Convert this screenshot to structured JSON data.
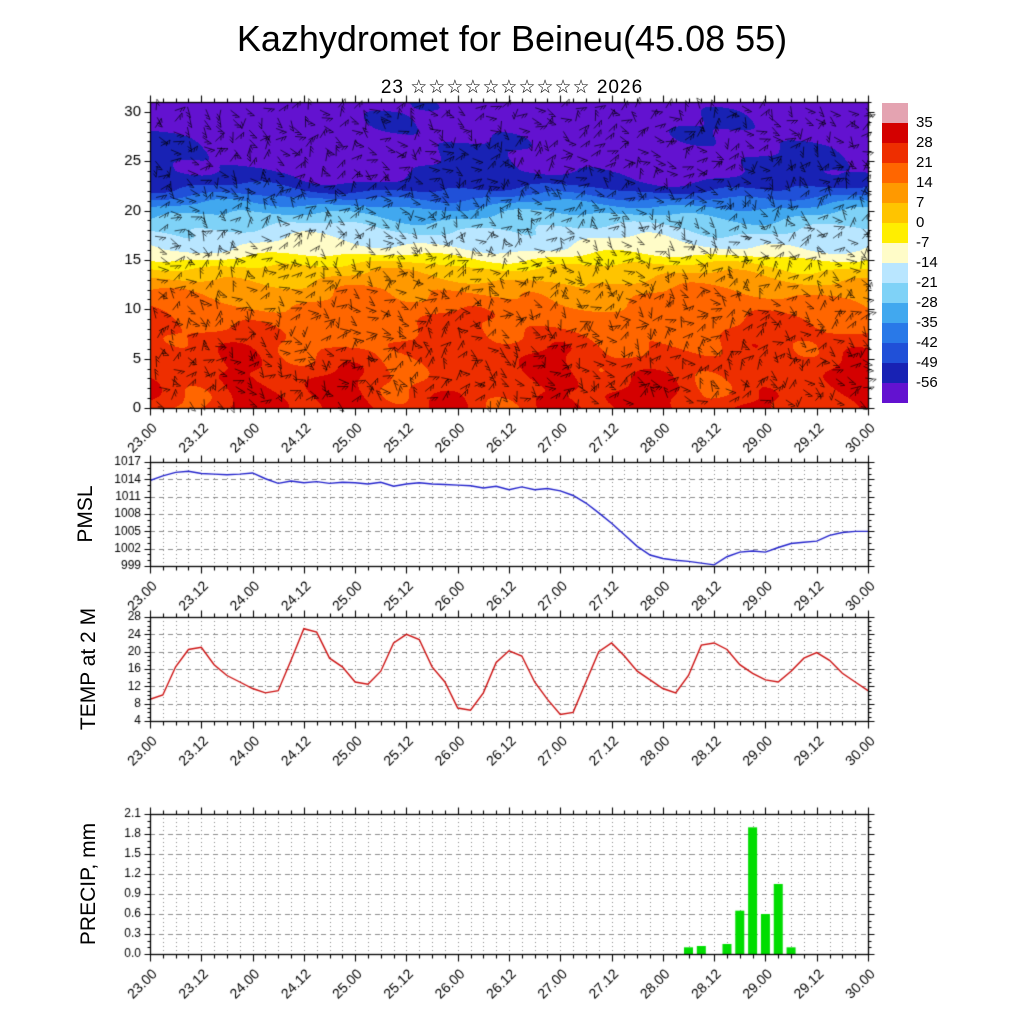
{
  "title": "Kazhydromet for Beineu(45.08 55)",
  "subtitle": "23 ☆☆☆☆☆☆☆☆☆☆ 2026",
  "axis": {
    "x_min": 23,
    "x_max": 30,
    "x_major": 0.5,
    "x_minor": 0.125,
    "x_tick_labels": [
      "23.00",
      "23.12",
      "24.00",
      "24.12",
      "25.00",
      "25.12",
      "26.00",
      "26.12",
      "27.00",
      "27.12",
      "28.00",
      "28.12",
      "29.00",
      "29.12",
      "30.00"
    ]
  },
  "chart_data": [
    {
      "id": "cross_section",
      "type": "heatmap",
      "title": "Vertical cross-section of temperature with wind barbs",
      "ylim": [
        0,
        31
      ],
      "yticks": [
        0,
        5,
        10,
        15,
        20,
        25,
        30
      ],
      "overlay": "wind-barbs",
      "colorbar": {
        "labels": [
          35,
          28,
          21,
          14,
          7,
          0,
          -7,
          -14,
          -21,
          -28,
          -35,
          -42,
          -49,
          -56
        ],
        "colors": [
          "#e4a3b1",
          "#d40000",
          "#ee2e00",
          "#ff6600",
          "#ff9900",
          "#ffc400",
          "#ffee00",
          "#fffcc8",
          "#b9e6ff",
          "#7fd2f7",
          "#41a8ef",
          "#2979e8",
          "#2050d8",
          "#1822b4",
          "#6312d0"
        ]
      },
      "profile": [
        [
          0,
          27
        ],
        [
          3,
          26
        ],
        [
          6,
          23
        ],
        [
          9,
          19
        ],
        [
          12,
          12
        ],
        [
          14,
          3
        ],
        [
          15,
          -4
        ],
        [
          16,
          -12
        ],
        [
          17,
          -16
        ],
        [
          18,
          -20
        ],
        [
          19,
          -25
        ],
        [
          20,
          -31
        ],
        [
          21,
          -39
        ],
        [
          22,
          -48
        ],
        [
          23,
          -54
        ],
        [
          24,
          -57
        ],
        [
          31,
          -60
        ]
      ]
    },
    {
      "id": "pmsl",
      "type": "line",
      "ylabel": "PMSL",
      "color": "#2222cc",
      "ylim": [
        999,
        1017
      ],
      "yticks": [
        999,
        1002,
        1005,
        1008,
        1011,
        1014,
        1017
      ],
      "x_start": 23,
      "x_step": 0.125,
      "values": [
        1013.8,
        1014.6,
        1015.2,
        1015.4,
        1015.0,
        1014.9,
        1014.8,
        1014.9,
        1015.1,
        1014.1,
        1013.3,
        1013.7,
        1013.4,
        1013.6,
        1013.3,
        1013.5,
        1013.4,
        1013.2,
        1013.5,
        1012.8,
        1013.2,
        1013.4,
        1013.2,
        1013.1,
        1013.0,
        1012.9,
        1012.5,
        1012.8,
        1012.2,
        1012.7,
        1012.2,
        1012.4,
        1012.0,
        1011.2,
        1009.9,
        1008.2,
        1006.4,
        1004.4,
        1002.4,
        1000.9,
        1000.3,
        1000.0,
        999.8,
        999.5,
        999.2,
        1000.6,
        1001.4,
        1001.6,
        1001.4,
        1002.2,
        1002.9,
        1003.1,
        1003.3,
        1004.3,
        1004.8,
        1005.0,
        1005.0
      ]
    },
    {
      "id": "temp2m",
      "type": "line",
      "ylabel": "TEMP at 2 M",
      "color": "#cc1111",
      "ylim": [
        4,
        28
      ],
      "yticks": [
        4,
        8,
        12,
        16,
        20,
        24,
        28
      ],
      "x_start": 23,
      "x_step": 0.125,
      "values": [
        9,
        10,
        16.5,
        20.5,
        21,
        17,
        14.5,
        13,
        11.5,
        10.5,
        11,
        18,
        25.3,
        24.5,
        18.5,
        16.5,
        13,
        12.5,
        15.5,
        22,
        24,
        22.8,
        16.5,
        13,
        7,
        6.5,
        10.5,
        17.5,
        20.2,
        19,
        13,
        9,
        5.5,
        6,
        13,
        20,
        22,
        19,
        15.5,
        13.5,
        11.5,
        10.5,
        14.5,
        21.5,
        22,
        20.5,
        17,
        15,
        13.5,
        13,
        15.5,
        18.5,
        19.8,
        18,
        15,
        13,
        11
      ]
    },
    {
      "id": "precip",
      "type": "bar",
      "ylabel": "PRECIP, mm",
      "color": "#00dd00",
      "ylim": [
        0,
        2.1
      ],
      "yticks": [
        0.0,
        0.3,
        0.6,
        0.9,
        1.2,
        1.5,
        1.8,
        2.1
      ],
      "points": [
        [
          28.25,
          0.1
        ],
        [
          28.375,
          0.12
        ],
        [
          28.625,
          0.15
        ],
        [
          28.75,
          0.65
        ],
        [
          28.875,
          1.9
        ],
        [
          29.0,
          0.6
        ],
        [
          29.125,
          1.05
        ],
        [
          29.25,
          0.1
        ]
      ]
    }
  ]
}
